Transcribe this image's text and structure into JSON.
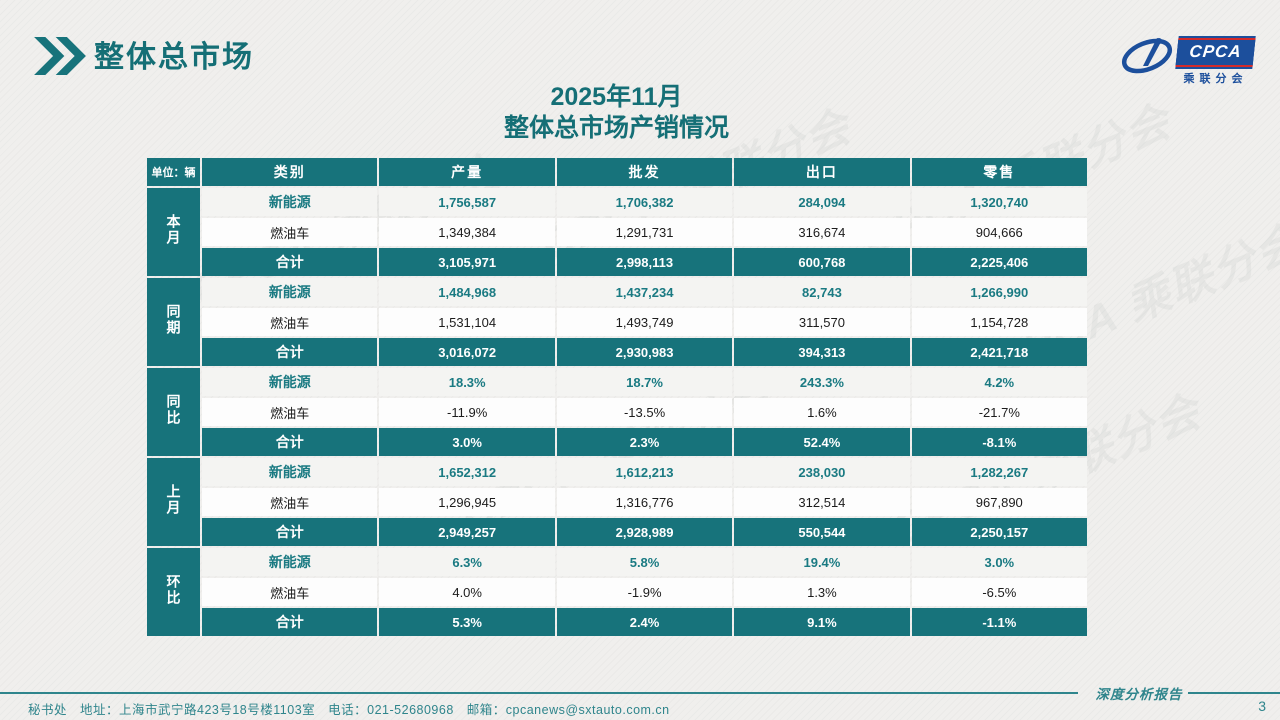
{
  "page": {
    "title": "整体总市场",
    "subtitle_line1": "2025年11月",
    "subtitle_line2": "整体总市场产销情况",
    "footer_text": "秘书处　地址：上海市武宁路423号18号楼1103室　电话：021-52680968　邮箱：cpcanews@sxtauto.com.cn",
    "report_label": "深度分析报告",
    "page_number": "3",
    "watermark": "CPCA 乘联分会"
  },
  "logo": {
    "cpca": "CPCA",
    "branch": "乘联分会"
  },
  "table": {
    "unit_label": "单位：辆",
    "columns": [
      "类别",
      "产量",
      "批发",
      "出口",
      "零售"
    ],
    "groups": [
      {
        "label": "本月",
        "rows": [
          {
            "type": "ev",
            "category": "新能源",
            "values": [
              "1,756,587",
              "1,706,382",
              "284,094",
              "1,320,740"
            ]
          },
          {
            "type": "ice",
            "category": "燃油车",
            "values": [
              "1,349,384",
              "1,291,731",
              "316,674",
              "904,666"
            ]
          },
          {
            "type": "total",
            "category": "合计",
            "values": [
              "3,105,971",
              "2,998,113",
              "600,768",
              "2,225,406"
            ]
          }
        ]
      },
      {
        "label": "同期",
        "rows": [
          {
            "type": "ev",
            "category": "新能源",
            "values": [
              "1,484,968",
              "1,437,234",
              "82,743",
              "1,266,990"
            ]
          },
          {
            "type": "ice",
            "category": "燃油车",
            "values": [
              "1,531,104",
              "1,493,749",
              "311,570",
              "1,154,728"
            ]
          },
          {
            "type": "total",
            "category": "合计",
            "values": [
              "3,016,072",
              "2,930,983",
              "394,313",
              "2,421,718"
            ]
          }
        ]
      },
      {
        "label": "同比",
        "rows": [
          {
            "type": "ev",
            "category": "新能源",
            "values": [
              "18.3%",
              "18.7%",
              "243.3%",
              "4.2%"
            ]
          },
          {
            "type": "ice",
            "category": "燃油车",
            "values": [
              "-11.9%",
              "-13.5%",
              "1.6%",
              "-21.7%"
            ]
          },
          {
            "type": "total",
            "category": "合计",
            "values": [
              "3.0%",
              "2.3%",
              "52.4%",
              "-8.1%"
            ]
          }
        ]
      },
      {
        "label": "上月",
        "rows": [
          {
            "type": "ev",
            "category": "新能源",
            "values": [
              "1,652,312",
              "1,612,213",
              "238,030",
              "1,282,267"
            ]
          },
          {
            "type": "ice",
            "category": "燃油车",
            "values": [
              "1,296,945",
              "1,316,776",
              "312,514",
              "967,890"
            ]
          },
          {
            "type": "total",
            "category": "合计",
            "values": [
              "2,949,257",
              "2,928,989",
              "550,544",
              "2,250,157"
            ]
          }
        ]
      },
      {
        "label": "环比",
        "rows": [
          {
            "type": "ev",
            "category": "新能源",
            "values": [
              "6.3%",
              "5.8%",
              "19.4%",
              "3.0%"
            ]
          },
          {
            "type": "ice",
            "category": "燃油车",
            "values": [
              "4.0%",
              "-1.9%",
              "1.3%",
              "-6.5%"
            ]
          },
          {
            "type": "total",
            "category": "合计",
            "values": [
              "5.3%",
              "2.4%",
              "9.1%",
              "-1.1%"
            ]
          }
        ]
      }
    ]
  },
  "colors": {
    "teal": "#17737b",
    "teal_dark": "#156f76",
    "value_teal": "#1a7a82",
    "footer_teal": "#2f858c",
    "logo_blue": "#1c4f9c",
    "logo_red": "#d42a2a"
  }
}
